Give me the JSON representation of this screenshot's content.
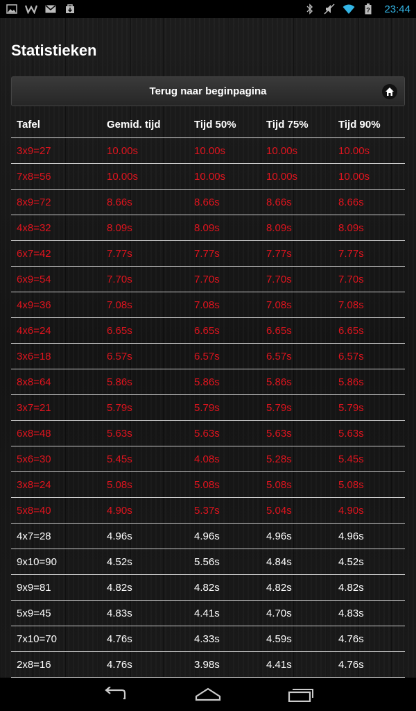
{
  "status_bar": {
    "time": "23:44",
    "icons_left": [
      "image-icon",
      "w-app-icon",
      "gmail-icon",
      "download-bag-icon"
    ],
    "icons_right": [
      "bluetooth-icon",
      "muted-icon",
      "wifi-icon",
      "battery-icon"
    ]
  },
  "page": {
    "title": "Statistieken",
    "home_button_label": "Terug naar beginpagina"
  },
  "table": {
    "headers": [
      "Tafel",
      "Gemid. tijd",
      "Tijd 50%",
      "Tijd 75%",
      "Tijd 90%"
    ],
    "rows": [
      {
        "cells": [
          "3x9=27",
          "10.00s",
          "10.00s",
          "10.00s",
          "10.00s"
        ],
        "status": "slow"
      },
      {
        "cells": [
          "7x8=56",
          "10.00s",
          "10.00s",
          "10.00s",
          "10.00s"
        ],
        "status": "slow"
      },
      {
        "cells": [
          "8x9=72",
          "8.66s",
          "8.66s",
          "8.66s",
          "8.66s"
        ],
        "status": "slow"
      },
      {
        "cells": [
          "4x8=32",
          "8.09s",
          "8.09s",
          "8.09s",
          "8.09s"
        ],
        "status": "slow"
      },
      {
        "cells": [
          "6x7=42",
          "7.77s",
          "7.77s",
          "7.77s",
          "7.77s"
        ],
        "status": "slow"
      },
      {
        "cells": [
          "6x9=54",
          "7.70s",
          "7.70s",
          "7.70s",
          "7.70s"
        ],
        "status": "slow"
      },
      {
        "cells": [
          "4x9=36",
          "7.08s",
          "7.08s",
          "7.08s",
          "7.08s"
        ],
        "status": "slow"
      },
      {
        "cells": [
          "4x6=24",
          "6.65s",
          "6.65s",
          "6.65s",
          "6.65s"
        ],
        "status": "slow"
      },
      {
        "cells": [
          "3x6=18",
          "6.57s",
          "6.57s",
          "6.57s",
          "6.57s"
        ],
        "status": "slow"
      },
      {
        "cells": [
          "8x8=64",
          "5.86s",
          "5.86s",
          "5.86s",
          "5.86s"
        ],
        "status": "slow"
      },
      {
        "cells": [
          "3x7=21",
          "5.79s",
          "5.79s",
          "5.79s",
          "5.79s"
        ],
        "status": "slow"
      },
      {
        "cells": [
          "6x8=48",
          "5.63s",
          "5.63s",
          "5.63s",
          "5.63s"
        ],
        "status": "slow"
      },
      {
        "cells": [
          "5x6=30",
          "5.45s",
          "4.08s",
          "5.28s",
          "5.45s"
        ],
        "status": "slow"
      },
      {
        "cells": [
          "3x8=24",
          "5.08s",
          "5.08s",
          "5.08s",
          "5.08s"
        ],
        "status": "slow"
      },
      {
        "cells": [
          "5x8=40",
          "4.90s",
          "5.37s",
          "5.04s",
          "4.90s"
        ],
        "status": "slow"
      },
      {
        "cells": [
          "4x7=28",
          "4.96s",
          "4.96s",
          "4.96s",
          "4.96s"
        ],
        "status": "fast"
      },
      {
        "cells": [
          "9x10=90",
          "4.52s",
          "5.56s",
          "4.84s",
          "4.52s"
        ],
        "status": "fast"
      },
      {
        "cells": [
          "9x9=81",
          "4.82s",
          "4.82s",
          "4.82s",
          "4.82s"
        ],
        "status": "fast"
      },
      {
        "cells": [
          "5x9=45",
          "4.83s",
          "4.41s",
          "4.70s",
          "4.83s"
        ],
        "status": "fast"
      },
      {
        "cells": [
          "7x10=70",
          "4.76s",
          "4.33s",
          "4.59s",
          "4.76s"
        ],
        "status": "fast"
      },
      {
        "cells": [
          "2x8=16",
          "4.76s",
          "3.98s",
          "4.41s",
          "4.76s"
        ],
        "status": "fast"
      }
    ]
  },
  "colors": {
    "slow_text": "#e0141e",
    "normal_text": "#ffffff",
    "clock": "#33b5e5"
  },
  "nav_bar": [
    "back-icon",
    "home-icon",
    "recent-apps-icon"
  ]
}
